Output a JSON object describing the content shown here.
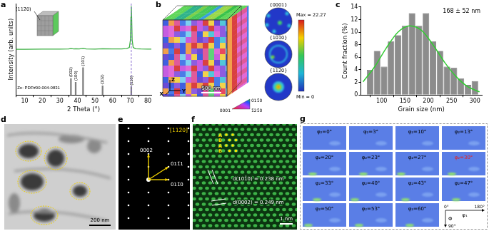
{
  "figure": {
    "panel_letters": [
      "a",
      "b",
      "c",
      "d",
      "e",
      "f",
      "g"
    ],
    "b": {
      "scale_bar": "500 nm",
      "axes": [
        "Z",
        "X",
        "Y"
      ],
      "ipf_labels": [
        "0001",
        "011̄0",
        "1̄21̄0"
      ],
      "pole_figures": [
        "{0001}",
        "{101̄0}",
        "{112̄0}"
      ],
      "colorbar": {
        "range": [
          0,
          22.27
        ],
        "ticks": [
          {
            "value": 22.27,
            "label": "Max = 22.27"
          },
          {
            "value": 0,
            "label": "Min = 0"
          }
        ]
      }
    },
    "d": {
      "scale_bar": "200 nm"
    },
    "e": {
      "zone_axis": "[112̄0]",
      "spots": [
        "0002",
        "011̄1",
        "011̄0"
      ]
    },
    "f": {
      "stacking": [
        "A",
        "B",
        "A",
        "B"
      ],
      "spacings": [
        "d(101̄0) = 0.238 nm",
        "d(0002) = 0.249 nm"
      ],
      "scale_bar": "1 nm"
    },
    "g": {
      "sections": [
        {
          "label": "φ₂=0°"
        },
        {
          "label": "φ₂=3°"
        },
        {
          "label": "φ₂=10°"
        },
        {
          "label": "φ₂=13°"
        },
        {
          "label": "φ₂=20°"
        },
        {
          "label": "φ₂=23°"
        },
        {
          "label": "φ₂=27°"
        },
        {
          "label": "φ₂=30°",
          "color": "#e8201c"
        },
        {
          "label": "φ₂=33°"
        },
        {
          "label": "φ₂=40°"
        },
        {
          "label": "φ₂=43°"
        },
        {
          "label": "φ₂=47°"
        },
        {
          "label": "φ₂=50°"
        },
        {
          "label": "φ₂=53°"
        },
        {
          "label": "φ₂=60°"
        }
      ],
      "axes": {
        "phi1_start": "0°",
        "phi1_end": "180°",
        "phi1": "φ₁",
        "Phi": "Φ",
        "Phi_end": "90°"
      }
    }
  },
  "chart_data": [
    {
      "type": "line",
      "x_label": "2 Theta (°)",
      "y_label": "Intensity (arb. units)",
      "xlim": [
        5,
        82
      ],
      "xticks": [
        10,
        20,
        30,
        40,
        50,
        60,
        70,
        80
      ],
      "ylim": [
        0,
        100
      ],
      "tick_labels": "x",
      "grid": false,
      "inset_label": "(112̄0)",
      "annotations": [
        "Zn: PDF#00-004-0831"
      ],
      "series": [
        {
          "color": "#3cb043",
          "x": [
            5,
            10,
            20,
            30,
            35,
            36.3,
            38,
            39,
            41,
            43.2,
            45,
            50,
            54.3,
            60,
            65,
            68,
            69.5,
            70.1,
            70.4,
            70.6,
            70.8,
            71.1,
            71.7,
            73,
            76,
            80,
            82
          ],
          "values": [
            50,
            50,
            50.2,
            50.1,
            50.3,
            50.8,
            50.3,
            50.5,
            50.3,
            50.9,
            50.3,
            50.2,
            50.5,
            50.3,
            50.4,
            50.8,
            52,
            60,
            85,
            97,
            86,
            60,
            52,
            50.6,
            50.3,
            50.2,
            50.2
          ]
        },
        {
          "type": "bar",
          "color": "#7f7f7f",
          "x": [
            36.3,
            39.0,
            43.2,
            54.3,
            70.6
          ],
          "values": [
            18,
            14,
            30,
            10,
            9
          ],
          "point_labels": [
            "(002)",
            "(100)",
            "(101)",
            "(102)",
            "(110)"
          ]
        }
      ],
      "reference_line": {
        "x": 70.6,
        "color": "#8a6fd1",
        "line_style": "dashed"
      }
    },
    {
      "type": "histogram",
      "x_label": "Grain size (nm)",
      "y_label": "Count fraction (%)",
      "bins": [
        67.5,
        82.5,
        97.5,
        112.5,
        127.5,
        142.5,
        157.5,
        172.5,
        187.5,
        202.5,
        217.5,
        232.5,
        247.5,
        262.5,
        277.5,
        292.5,
        307.5
      ],
      "values": [
        4,
        7,
        4.5,
        8.5,
        9.5,
        11,
        13,
        11,
        13,
        8.5,
        7,
        4.5,
        4.3,
        2.6,
        1.6,
        2.2
      ],
      "color": "#8c8c8c",
      "xlim": [
        55,
        315
      ],
      "xticks": [
        100,
        150,
        200,
        250,
        300
      ],
      "ylim": [
        0,
        14
      ],
      "yticks": [
        0,
        2,
        4,
        6,
        8,
        10,
        12,
        14
      ],
      "grid": false,
      "annotations": [
        "168 ± 52 nm"
      ],
      "fit": {
        "color": "#33cc33",
        "x": [
          60,
          85,
          110,
          135,
          160,
          185,
          210,
          235,
          260,
          285,
          310
        ],
        "values": [
          2.1,
          4.5,
          7.5,
          10,
          11,
          10.3,
          8,
          5.2,
          2.9,
          1.3,
          0.5
        ]
      }
    }
  ]
}
